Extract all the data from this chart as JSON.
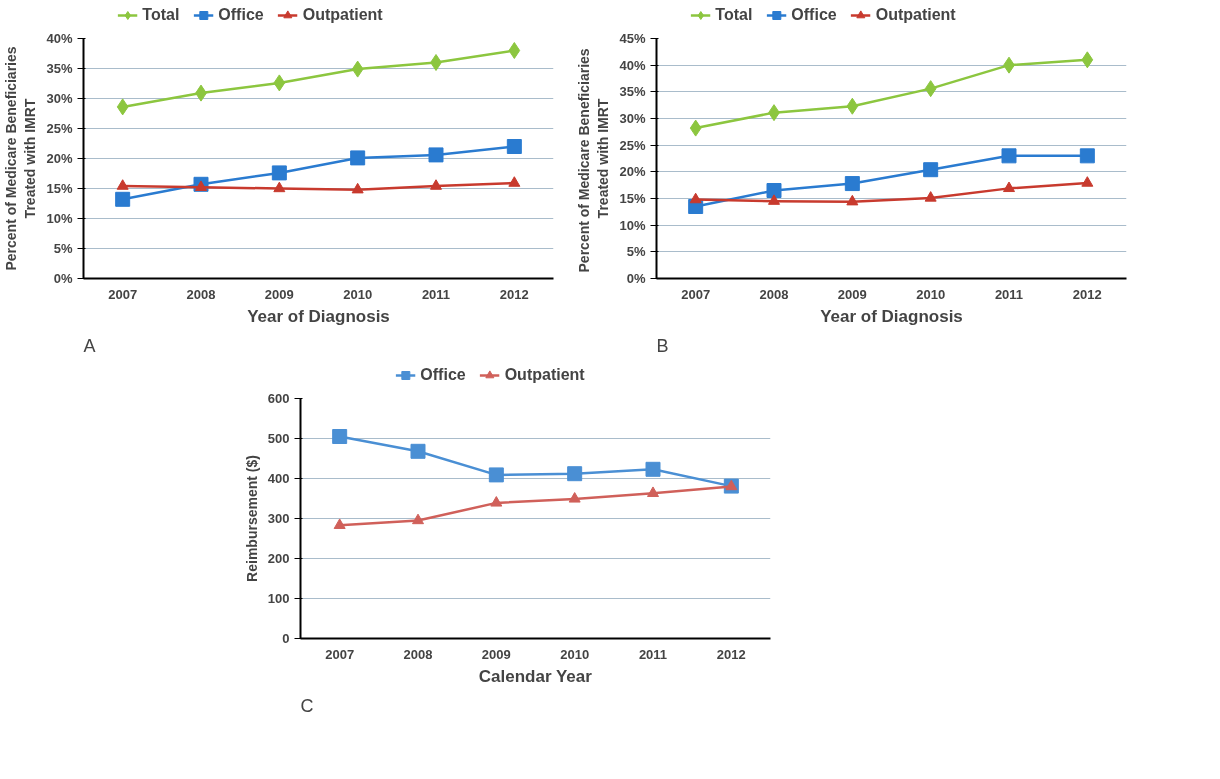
{
  "chart_data": [
    {
      "type": "line",
      "categories": [
        "2007",
        "2008",
        "2009",
        "2010",
        "2011",
        "2012"
      ],
      "xlabel": "Year of Diagnosis",
      "ylabel": "Percent of Medicare Beneficiaries\nTreated with IMRT",
      "annotations": [
        "A"
      ],
      "ylim": [
        0,
        40
      ],
      "yticks": [
        {
          "value": 0,
          "label": "0%"
        },
        {
          "value": 5,
          "label": "5%"
        },
        {
          "value": 10,
          "label": "10%"
        },
        {
          "value": 15,
          "label": "15%"
        },
        {
          "value": 20,
          "label": "20%"
        },
        {
          "value": 25,
          "label": "25%"
        },
        {
          "value": 30,
          "label": "30%"
        },
        {
          "value": 35,
          "label": "35%"
        },
        {
          "value": 40,
          "label": "40%"
        }
      ],
      "grid": "y",
      "legend": "top",
      "series": [
        {
          "name": "Total",
          "color": "#8cc63f",
          "marker": "diamond",
          "values": [
            28.6,
            30.9,
            32.6,
            34.9,
            36.0,
            38.0
          ]
        },
        {
          "name": "Office",
          "color": "#2a7bd0",
          "marker": "square",
          "values": [
            13.2,
            15.7,
            17.6,
            20.1,
            20.6,
            22.0
          ]
        },
        {
          "name": "Outpatient",
          "color": "#c83a2e",
          "marker": "triangle",
          "values": [
            15.4,
            15.2,
            15.0,
            14.8,
            15.4,
            15.9
          ]
        }
      ]
    },
    {
      "type": "line",
      "categories": [
        "2007",
        "2008",
        "2009",
        "2010",
        "2011",
        "2012"
      ],
      "xlabel": "Year of Diagnosis",
      "ylabel": "Percent of Medicare  Beneficiaries\nTreated with IMRT",
      "annotations": [
        "B"
      ],
      "ylim": [
        0,
        45
      ],
      "yticks": [
        {
          "value": 0,
          "label": "0%"
        },
        {
          "value": 5,
          "label": "5%"
        },
        {
          "value": 10,
          "label": "10%"
        },
        {
          "value": 15,
          "label": "15%"
        },
        {
          "value": 20,
          "label": "20%"
        },
        {
          "value": 25,
          "label": "25%"
        },
        {
          "value": 30,
          "label": "30%"
        },
        {
          "value": 35,
          "label": "35%"
        },
        {
          "value": 40,
          "label": "40%"
        },
        {
          "value": 45,
          "label": "45%"
        }
      ],
      "grid": "y",
      "legend": "top",
      "series": [
        {
          "name": "Total",
          "color": "#8cc63f",
          "marker": "diamond",
          "values": [
            28.2,
            31.1,
            32.3,
            35.6,
            40.0,
            41.0
          ]
        },
        {
          "name": "Office",
          "color": "#2a7bd0",
          "marker": "square",
          "values": [
            13.5,
            16.5,
            17.8,
            20.4,
            23.0,
            23.0
          ]
        },
        {
          "name": "Outpatient",
          "color": "#c83a2e",
          "marker": "triangle",
          "values": [
            14.8,
            14.5,
            14.4,
            15.1,
            16.9,
            17.9
          ]
        }
      ]
    },
    {
      "type": "line",
      "categories": [
        "2007",
        "2008",
        "2009",
        "2010",
        "2011",
        "2012"
      ],
      "xlabel": "Calendar Year",
      "ylabel": "Reimbursement ($)",
      "annotations": [
        "C"
      ],
      "ylim": [
        0,
        600
      ],
      "yticks": [
        0,
        100,
        200,
        300,
        400,
        500,
        600
      ],
      "grid": "y",
      "legend": "top",
      "series": [
        {
          "name": "Office",
          "color": "#4a8fd4",
          "marker": "square",
          "values": [
            505,
            468,
            409,
            412,
            423,
            381
          ]
        },
        {
          "name": "Outpatient",
          "color": "#d0605a",
          "marker": "triangle",
          "values": [
            283,
            295,
            339,
            349,
            363,
            380
          ]
        }
      ]
    }
  ]
}
